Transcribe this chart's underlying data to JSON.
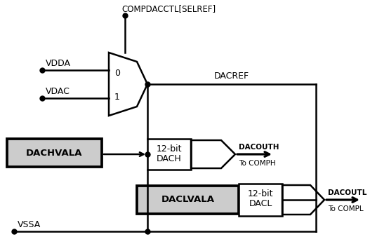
{
  "bg_color": "#ffffff",
  "line_color": "#000000",
  "lw": 1.8,
  "fig_w": 5.27,
  "fig_h": 3.58,
  "dpi": 100,
  "compdac_label": "COMPDACCTL[SELREF]",
  "vdda_label": "VDDA",
  "vdac_label": "VDAC",
  "dacref_label": "DACREF",
  "vssa_label": "VSSA",
  "dachvala_label": "DACHVALA",
  "daclvala_label": "DACLVALA",
  "dach_label1": "12-bit",
  "dach_label2": "DACH",
  "dacl_label1": "12-bit",
  "dacl_label2": "DACL",
  "dacouth_label": "DACOUTH",
  "to_comph_label": "To COMPH",
  "dacoutl_label": "DACOUTL",
  "to_compl_label": "To COMPL",
  "mux_0_label": "0",
  "mux_1_label": "1"
}
